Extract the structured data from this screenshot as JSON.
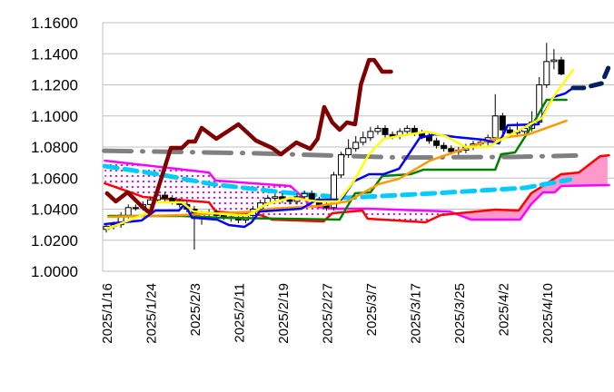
{
  "chart_data": {
    "type": "candlestick-ichimoku",
    "title": "",
    "xlabel": "",
    "ylabel": "",
    "ylim": [
      1.0,
      1.16
    ],
    "y_ticks": [
      "1.0000",
      "1.0200",
      "1.0400",
      "1.0600",
      "1.0800",
      "1.1000",
      "1.1200",
      "1.1400",
      "1.1600"
    ],
    "y_tick_values": [
      1.0,
      1.02,
      1.04,
      1.06,
      1.08,
      1.1,
      1.12,
      1.14,
      1.16
    ],
    "x_ticks": [
      "2025/1/16",
      "2025/1/24",
      "2025/2/3",
      "2025/2/11",
      "2025/2/19",
      "2025/2/27",
      "2025/3/7",
      "2025/3/17",
      "2025/3/25",
      "2025/4/2",
      "2025/4/10"
    ],
    "x_tick_index": [
      0,
      6,
      12,
      18,
      24,
      30,
      36,
      42,
      48,
      54,
      60
    ],
    "xlim_index": [
      0,
      69
    ],
    "grid": "horizontal",
    "colors": {
      "grid": "#c0c0c0",
      "chikou": "#7f0000",
      "tenkan": "#0000ff",
      "tenkan_forecast": "#002060",
      "kijun": "#008000",
      "short_ma": "#ffff00",
      "long_ma": "#ff9900",
      "gray_ma": "#808080",
      "cyan_ma": "#00ccff",
      "span_a": "#ff00ff",
      "span_b": "#ff0000",
      "cloud_fill": "#ff99cc"
    },
    "candles": {
      "open": [
        1.027,
        1.029,
        1.03,
        1.036,
        1.041,
        1.041,
        1.043,
        1.046,
        1.049,
        1.047,
        1.045,
        1.043,
        1.04,
        1.034,
        1.037,
        1.038,
        1.036,
        1.035,
        1.034,
        1.033,
        1.036,
        1.04,
        1.044,
        1.047,
        1.048,
        1.046,
        1.045,
        1.048,
        1.05,
        1.046,
        1.043,
        1.041,
        1.062,
        1.075,
        1.079,
        1.083,
        1.086,
        1.09,
        1.092,
        1.088,
        1.087,
        1.09,
        1.092,
        1.089,
        1.087,
        1.084,
        1.081,
        1.079,
        1.077,
        1.078,
        1.08,
        1.082,
        1.083,
        1.086,
        1.1,
        1.091,
        1.089,
        1.09,
        1.092,
        1.096,
        1.12,
        1.135,
        1.136
      ],
      "high": [
        1.031,
        1.032,
        1.038,
        1.043,
        1.043,
        1.045,
        1.048,
        1.051,
        1.051,
        1.049,
        1.047,
        1.045,
        1.042,
        1.039,
        1.04,
        1.04,
        1.038,
        1.037,
        1.036,
        1.038,
        1.042,
        1.046,
        1.049,
        1.05,
        1.05,
        1.048,
        1.05,
        1.052,
        1.052,
        1.048,
        1.045,
        1.064,
        1.077,
        1.085,
        1.087,
        1.09,
        1.093,
        1.094,
        1.094,
        1.09,
        1.092,
        1.094,
        1.094,
        1.091,
        1.089,
        1.086,
        1.083,
        1.081,
        1.08,
        1.082,
        1.084,
        1.085,
        1.088,
        1.114,
        1.102,
        1.093,
        1.096,
        1.094,
        1.103,
        1.125,
        1.147,
        1.143,
        1.138
      ],
      "low": [
        1.025,
        1.027,
        1.028,
        1.034,
        1.039,
        1.039,
        1.041,
        1.044,
        1.045,
        1.043,
        1.041,
        1.038,
        1.014,
        1.03,
        1.035,
        1.034,
        1.033,
        1.032,
        1.031,
        1.031,
        1.034,
        1.038,
        1.042,
        1.045,
        1.044,
        1.043,
        1.043,
        1.046,
        1.044,
        1.041,
        1.039,
        1.039,
        1.06,
        1.073,
        1.077,
        1.081,
        1.084,
        1.088,
        1.086,
        1.085,
        1.085,
        1.088,
        1.087,
        1.085,
        1.082,
        1.079,
        1.077,
        1.075,
        1.075,
        1.076,
        1.078,
        1.08,
        1.081,
        1.084,
        1.089,
        1.087,
        1.087,
        1.088,
        1.09,
        1.094,
        1.118,
        1.13,
        1.126
      ],
      "close": [
        1.029,
        1.03,
        1.036,
        1.041,
        1.041,
        1.043,
        1.046,
        1.049,
        1.047,
        1.045,
        1.043,
        1.04,
        1.034,
        1.037,
        1.038,
        1.036,
        1.035,
        1.034,
        1.033,
        1.036,
        1.04,
        1.044,
        1.047,
        1.048,
        1.046,
        1.045,
        1.048,
        1.05,
        1.046,
        1.043,
        1.041,
        1.062,
        1.075,
        1.079,
        1.083,
        1.086,
        1.09,
        1.092,
        1.088,
        1.087,
        1.09,
        1.092,
        1.089,
        1.087,
        1.084,
        1.081,
        1.079,
        1.077,
        1.078,
        1.08,
        1.082,
        1.083,
        1.086,
        1.1,
        1.091,
        1.089,
        1.09,
        1.092,
        1.096,
        1.12,
        1.135,
        1.136,
        1.127
      ]
    },
    "series": [
      {
        "name": "chikou",
        "color_key": "chikou",
        "style": "thick",
        "points": [
          [
            0.1,
            1.0502
          ],
          [
            1.3,
            1.045
          ],
          [
            2.9,
            1.0508
          ],
          [
            4.8,
            1.042
          ],
          [
            6.0,
            1.0374
          ],
          [
            8.8,
            1.0794
          ],
          [
            10.3,
            1.0794
          ],
          [
            11.2,
            1.0835
          ],
          [
            12.1,
            1.0835
          ],
          [
            13.0,
            1.0923
          ],
          [
            15.0,
            1.0853
          ],
          [
            18.0,
            1.0946
          ],
          [
            20.4,
            1.0841
          ],
          [
            22.6,
            1.0794
          ],
          [
            23.8,
            1.0753
          ],
          [
            25.9,
            1.0829
          ],
          [
            27.8,
            1.0788
          ],
          [
            28.8,
            1.0853
          ],
          [
            29.7,
            1.1057
          ],
          [
            30.8,
            1.0958
          ],
          [
            31.8,
            1.0911
          ],
          [
            32.8,
            1.0958
          ],
          [
            33.9,
            1.0946
          ],
          [
            34.7,
            1.1203
          ],
          [
            35.8,
            1.136
          ],
          [
            36.5,
            1.136
          ],
          [
            37.6,
            1.1285
          ],
          [
            38.8,
            1.1285
          ]
        ]
      },
      {
        "name": "gray-ma",
        "color_key": "gray_ma",
        "style": "dashdot",
        "points": [
          [
            -0.3,
            1.0776
          ],
          [
            20,
            1.076
          ],
          [
            40,
            1.0732
          ],
          [
            55,
            1.0736
          ],
          [
            64,
            1.0745
          ]
        ]
      },
      {
        "name": "cyan-ma",
        "color_key": "cyan_ma",
        "style": "dashed",
        "points": [
          [
            -0.2,
            1.0677
          ],
          [
            7.8,
            1.0619
          ],
          [
            14.4,
            1.0561
          ],
          [
            24.2,
            1.0508
          ],
          [
            32.8,
            1.0473
          ],
          [
            44.7,
            1.0502
          ],
          [
            57.0,
            1.0537
          ],
          [
            63.2,
            1.059
          ]
        ]
      },
      {
        "name": "senkou-span-b",
        "color_key": "span_b",
        "style": "solid",
        "points": [
          [
            -0.2,
            1.0566
          ],
          [
            2.6,
            1.052
          ],
          [
            5.0,
            1.0479
          ],
          [
            14.0,
            1.0444
          ],
          [
            14.9,
            1.0385
          ],
          [
            21.0,
            1.0362
          ],
          [
            22.6,
            1.0333
          ],
          [
            29.6,
            1.0321
          ],
          [
            30.8,
            1.0374
          ],
          [
            34.9,
            1.0391
          ],
          [
            35.6,
            1.0339
          ],
          [
            43.5,
            1.0315
          ],
          [
            45.6,
            1.0362
          ],
          [
            53.0,
            1.0397
          ],
          [
            56.2,
            1.0391
          ],
          [
            57.9,
            1.0502
          ],
          [
            62.0,
            1.0625
          ],
          [
            64.4,
            1.0636
          ],
          [
            67.3,
            1.0741
          ],
          [
            68.5,
            1.0747
          ]
        ]
      },
      {
        "name": "senkou-span-a",
        "color_key": "span_a",
        "style": "solid",
        "points": [
          [
            -0.2,
            1.0712
          ],
          [
            14.0,
            1.0636
          ],
          [
            14.9,
            1.0584
          ],
          [
            21.4,
            1.0561
          ],
          [
            25.1,
            1.0549
          ],
          [
            26.7,
            1.0479
          ],
          [
            27.9,
            1.042
          ],
          [
            30.8,
            1.0403
          ],
          [
            35.8,
            1.0403
          ],
          [
            46.8,
            1.0385
          ],
          [
            49.7,
            1.0333
          ],
          [
            56.4,
            1.0333
          ],
          [
            57.9,
            1.0432
          ],
          [
            59.5,
            1.0508
          ],
          [
            61.1,
            1.0508
          ],
          [
            62.0,
            1.0549
          ],
          [
            68.5,
            1.0555
          ]
        ]
      },
      {
        "name": "kijun",
        "color_key": "kijun",
        "style": "solid",
        "points": [
          [
            0.3,
            1.0356
          ],
          [
            10.3,
            1.0356
          ],
          [
            15.3,
            1.0345
          ],
          [
            31.8,
            1.0333
          ],
          [
            33.9,
            1.0502
          ],
          [
            36.0,
            1.0508
          ],
          [
            37.6,
            1.0613
          ],
          [
            41.5,
            1.0625
          ],
          [
            43.2,
            1.0654
          ],
          [
            53.0,
            1.0654
          ],
          [
            53.8,
            1.0753
          ],
          [
            55.7,
            1.0765
          ],
          [
            57.9,
            1.0928
          ],
          [
            60.0,
            1.1104
          ],
          [
            62.7,
            1.1104
          ]
        ]
      },
      {
        "name": "long-ma",
        "color_key": "long_ma",
        "style": "solid",
        "points": [
          [
            0.3,
            1.035
          ],
          [
            10.3,
            1.0362
          ],
          [
            20.5,
            1.0385
          ],
          [
            22.3,
            1.0403
          ],
          [
            28.8,
            1.042
          ],
          [
            32.9,
            1.045
          ],
          [
            37.1,
            1.0561
          ],
          [
            39.9,
            1.0596
          ],
          [
            44.1,
            1.0712
          ],
          [
            50.2,
            1.0812
          ],
          [
            53.0,
            1.0853
          ],
          [
            57.6,
            1.0882
          ],
          [
            62.7,
            1.0969
          ]
        ]
      },
      {
        "name": "tenkan",
        "color_key": "tenkan",
        "style": "solid",
        "points": [
          [
            -0.2,
            1.0304
          ],
          [
            4.8,
            1.0327
          ],
          [
            6.7,
            1.0391
          ],
          [
            9.9,
            1.0391
          ],
          [
            10.7,
            1.0432
          ],
          [
            11.7,
            1.0345
          ],
          [
            15.1,
            1.0333
          ],
          [
            16.7,
            1.0298
          ],
          [
            18.8,
            1.0286
          ],
          [
            19.8,
            1.0315
          ],
          [
            20.9,
            1.0385
          ],
          [
            26.6,
            1.0403
          ],
          [
            28.7,
            1.0461
          ],
          [
            32.0,
            1.0461
          ],
          [
            33.7,
            1.0578
          ],
          [
            35.8,
            1.0625
          ],
          [
            37.8,
            1.0625
          ],
          [
            39.9,
            1.066
          ],
          [
            42.7,
            1.0858
          ],
          [
            44.8,
            1.0882
          ],
          [
            47.6,
            1.0864
          ],
          [
            51.4,
            1.0847
          ],
          [
            53.5,
            1.0823
          ],
          [
            54.7,
            1.094
          ],
          [
            58.8,
            1.0946
          ],
          [
            60.9,
            1.1121
          ],
          [
            62.5,
            1.1144
          ],
          [
            63.6,
            1.118
          ]
        ]
      },
      {
        "name": "tenkan-forecast",
        "color_key": "tenkan_forecast",
        "style": "dashed-thick",
        "points": [
          [
            63.6,
            1.118
          ],
          [
            65.0,
            1.118
          ],
          [
            67.5,
            1.1209
          ],
          [
            68.4,
            1.1308
          ]
        ]
      },
      {
        "name": "short-ma",
        "color_key": "short_ma",
        "style": "solid",
        "points": [
          [
            0.1,
            1.0274
          ],
          [
            5.0,
            1.0362
          ],
          [
            6.6,
            1.0444
          ],
          [
            10.3,
            1.0444
          ],
          [
            11.9,
            1.0385
          ],
          [
            17.7,
            1.0362
          ],
          [
            19.3,
            1.0362
          ],
          [
            21.8,
            1.0432
          ],
          [
            25.1,
            1.0473
          ],
          [
            28.8,
            1.045
          ],
          [
            31.6,
            1.045
          ],
          [
            33.7,
            1.0578
          ],
          [
            35.8,
            1.0753
          ],
          [
            37.8,
            1.0853
          ],
          [
            39.9,
            1.087
          ],
          [
            43.7,
            1.0899
          ],
          [
            46.2,
            1.087
          ],
          [
            49.0,
            1.08
          ],
          [
            52.0,
            1.08
          ],
          [
            54.0,
            1.0853
          ],
          [
            59.4,
            1.0987
          ],
          [
            60.9,
            1.1121
          ],
          [
            63.6,
            1.1296
          ]
        ]
      }
    ]
  }
}
